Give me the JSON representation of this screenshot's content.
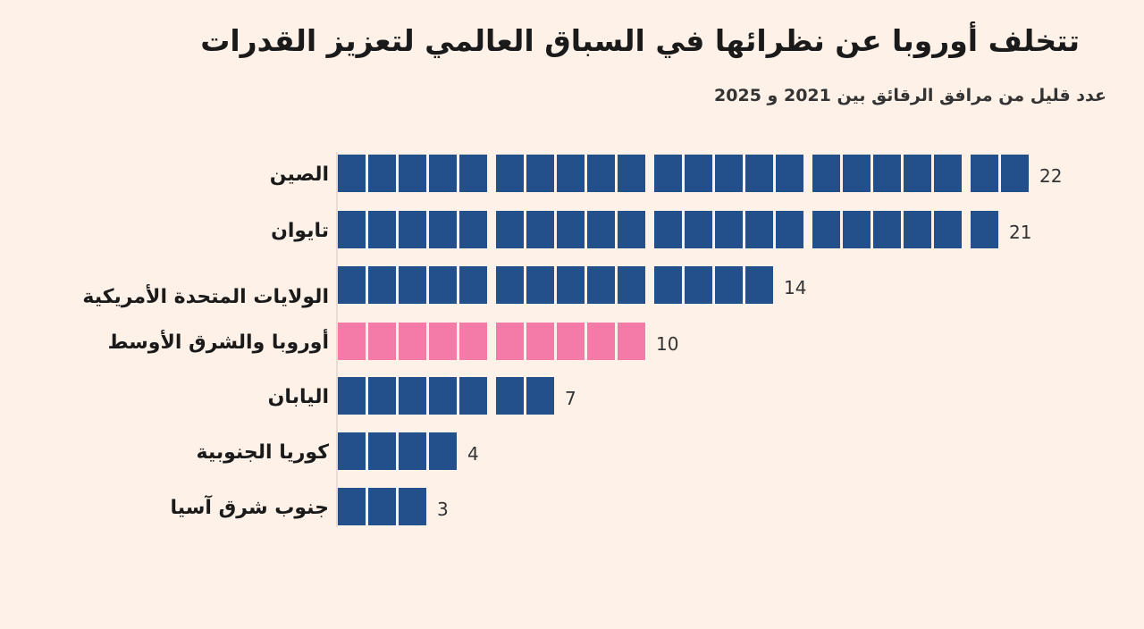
{
  "title": "تتخلف أوروبا عن نظرائها في السباق العالمي لتعزيز القدرات",
  "subtitle": "عدد قليل من مرافق الرقائق بين 2021 و 2025",
  "chart_data": {
    "type": "bar",
    "categories": [
      "الصين",
      "تايوان",
      "الولايات المتحدة الأمريكية",
      "أوروبا والشرق الأوسط",
      "اليابان",
      "كوريا الجنوبية",
      "جنوب شرق آسيا"
    ],
    "values": [
      22,
      21,
      14,
      10,
      7,
      4,
      3
    ],
    "title": "تتخلف أوروبا عن نظرائها في السباق العالمي لتعزيز القدرات",
    "subtitle": "عدد قليل من مرافق الرقائق بين 2021 و 2025",
    "xlabel": "",
    "ylabel": "",
    "xlim": [
      0,
      22
    ],
    "grid": false,
    "legend": "none",
    "colors": {
      "default": "#23508a",
      "highlight": "#f47aa7",
      "highlight_category": "أوروبا والشرق الأوسط"
    }
  }
}
